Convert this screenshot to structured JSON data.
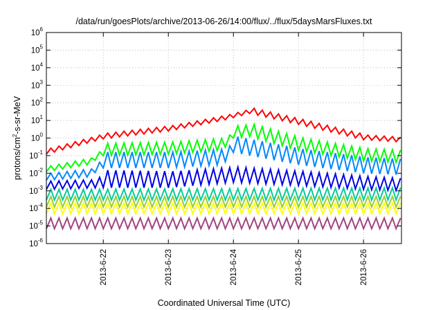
{
  "chart_data": {
    "type": "line",
    "title": "/data/run/goesPlots/archive/2013-06-26/14:00/flux/../flux/5daysMarsFluxes.txt",
    "xlabel": "Coordinated Universal Time (UTC)",
    "ylabel": {
      "pre": "protons/cm",
      "sup": "2",
      "post": "-s-sr-MeV"
    },
    "y_scale": "log",
    "ylim": [
      1e-06,
      1000000.0
    ],
    "y_ticks": [
      {
        "base": "10",
        "exp": "-6",
        "value": 1e-06
      },
      {
        "base": "10",
        "exp": "-5",
        "value": 1e-05
      },
      {
        "base": "10",
        "exp": "-4",
        "value": 0.0001
      },
      {
        "base": "10",
        "exp": "-3",
        "value": 0.001
      },
      {
        "base": "10",
        "exp": "-2",
        "value": 0.01
      },
      {
        "base": "10",
        "exp": "-1",
        "value": 0.1
      },
      {
        "base": "10",
        "exp": "0",
        "value": 1
      },
      {
        "base": "10",
        "exp": "1",
        "value": 10
      },
      {
        "base": "10",
        "exp": "2",
        "value": 100
      },
      {
        "base": "10",
        "exp": "3",
        "value": 1000
      },
      {
        "base": "10",
        "exp": "4",
        "value": 10000
      },
      {
        "base": "10",
        "exp": "5",
        "value": 100000
      },
      {
        "base": "10",
        "exp": "6",
        "value": 1000000
      }
    ],
    "xlim": [
      "2013-06-21 03:00",
      "2013-06-26 14:00"
    ],
    "x_ticks": [
      "2013-6-22",
      "2013-6-23",
      "2013-6-24",
      "2013-6-25",
      "2013-6-26"
    ],
    "grid": true,
    "legend": "none",
    "sawtooth_period_hours": 3,
    "series": [
      {
        "color": "#ff0000",
        "lows": [
          [
            "2013-06-21 03:00",
            0.12
          ],
          [
            "2013-06-22 00:00",
            0.9
          ],
          [
            "2013-06-23 00:00",
            2.5
          ],
          [
            "2013-06-23 20:00",
            10
          ],
          [
            "2013-06-24 06:00",
            25
          ],
          [
            "2013-06-25 00:00",
            6
          ],
          [
            "2013-06-26 00:00",
            0.8
          ],
          [
            "2013-06-26 14:00",
            0.6
          ]
        ],
        "amps": [
          [
            "2013-06-21 03:00",
            2.2
          ],
          [
            "2013-06-26 14:00",
            1.8
          ]
        ]
      },
      {
        "color": "#00ff00",
        "lows": [
          [
            "2013-06-21 03:00",
            0.012
          ],
          [
            "2013-06-21 18:00",
            0.03
          ],
          [
            "2013-06-22 00:00",
            0.1
          ],
          [
            "2013-06-23 00:00",
            0.12
          ],
          [
            "2013-06-23 20:00",
            0.2
          ],
          [
            "2013-06-24 00:00",
            1
          ],
          [
            "2013-06-24 06:00",
            1.2
          ],
          [
            "2013-06-25 00:00",
            0.2
          ],
          [
            "2013-06-26 00:00",
            0.05
          ],
          [
            "2013-06-26 14:00",
            0.04
          ]
        ],
        "amps": [
          [
            "2013-06-21 03:00",
            2.2
          ],
          [
            "2013-06-21 20:00",
            2.5
          ],
          [
            "2013-06-22 00:00",
            5
          ],
          [
            "2013-06-26 14:00",
            5
          ]
        ]
      },
      {
        "color": "#0088ff",
        "lows": [
          [
            "2013-06-21 03:00",
            0.004
          ],
          [
            "2013-06-21 18:00",
            0.006
          ],
          [
            "2013-06-22 00:00",
            0.02
          ],
          [
            "2013-06-23 00:00",
            0.02
          ],
          [
            "2013-06-23 20:00",
            0.03
          ],
          [
            "2013-06-24 00:00",
            0.15
          ],
          [
            "2013-06-25 00:00",
            0.03
          ],
          [
            "2013-06-26 00:00",
            0.01
          ],
          [
            "2013-06-26 14:00",
            0.008
          ]
        ],
        "amps": [
          [
            "2013-06-21 03:00",
            2.5
          ],
          [
            "2013-06-21 20:00",
            3
          ],
          [
            "2013-06-22 00:00",
            8
          ],
          [
            "2013-06-26 14:00",
            8
          ]
        ]
      },
      {
        "color": "#0000e6",
        "lows": [
          [
            "2013-06-21 03:00",
            0.0012
          ],
          [
            "2013-06-22 00:00",
            0.0015
          ],
          [
            "2013-06-23 00:00",
            0.0015
          ],
          [
            "2013-06-24 00:00",
            0.003
          ],
          [
            "2013-06-25 00:00",
            0.002
          ],
          [
            "2013-06-26 00:00",
            0.0012
          ],
          [
            "2013-06-26 14:00",
            0.001
          ]
        ],
        "amps": [
          [
            "2013-06-21 03:00",
            3
          ],
          [
            "2013-06-21 20:00",
            3
          ],
          [
            "2013-06-22 00:00",
            10
          ],
          [
            "2013-06-26 14:00",
            5
          ]
        ]
      },
      {
        "color": "#00cc99",
        "lows": [
          [
            "2013-06-21 03:00",
            0.0003
          ],
          [
            "2013-06-26 14:00",
            0.0003
          ]
        ],
        "amps": [
          [
            "2013-06-21 03:00",
            4
          ],
          [
            "2013-06-26 14:00",
            5
          ]
        ]
      },
      {
        "color": "#9acd32",
        "lows": [
          [
            "2013-06-21 03:00",
            0.00012
          ],
          [
            "2013-06-26 14:00",
            0.00012
          ]
        ],
        "amps": [
          [
            "2013-06-21 03:00",
            4
          ],
          [
            "2013-06-26 14:00",
            4
          ]
        ]
      },
      {
        "color": "#ffff00",
        "lows": [
          [
            "2013-06-21 03:00",
            5e-05
          ],
          [
            "2013-06-26 14:00",
            5e-05
          ]
        ],
        "amps": [
          [
            "2013-06-21 03:00",
            4
          ],
          [
            "2013-06-26 14:00",
            4
          ]
        ]
      },
      {
        "color": "#a0457e",
        "lows": [
          [
            "2013-06-21 03:00",
            7e-06
          ],
          [
            "2013-06-26 14:00",
            7e-06
          ]
        ],
        "amps": [
          [
            "2013-06-21 03:00",
            4
          ],
          [
            "2013-06-26 14:00",
            4
          ]
        ]
      }
    ]
  }
}
